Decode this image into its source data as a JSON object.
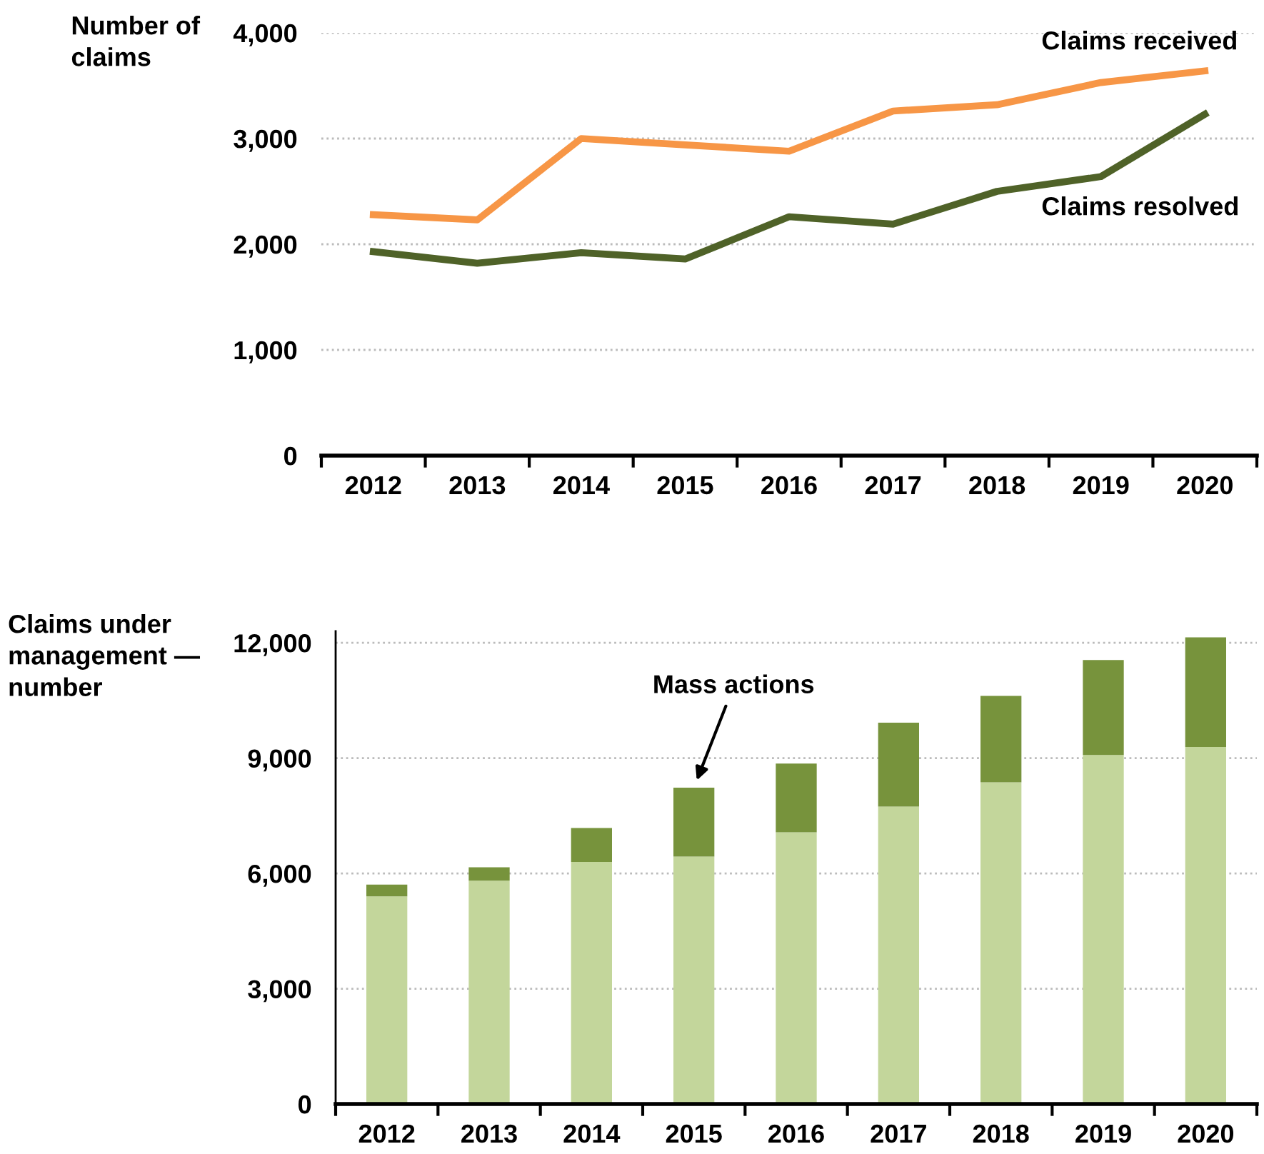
{
  "chart_data": [
    {
      "type": "line",
      "ylabel": "Number of claims",
      "categories": [
        "2012",
        "2013",
        "2014",
        "2015",
        "2016",
        "2017",
        "2018",
        "2019",
        "2020"
      ],
      "series": [
        {
          "name": "Claims received",
          "color": "#f79646",
          "values": [
            2280,
            2230,
            3000,
            2940,
            2880,
            3260,
            3320,
            3530,
            3640
          ]
        },
        {
          "name": "Claims resolved",
          "color": "#4f6228",
          "values": [
            1930,
            1820,
            1920,
            1860,
            2260,
            2190,
            2500,
            2640,
            3230
          ]
        }
      ],
      "ylim": [
        0,
        4000
      ],
      "yticks": [
        {
          "value": 0,
          "label": "0"
        },
        {
          "value": 1000,
          "label": "1,000"
        },
        {
          "value": 2000,
          "label": "2,000"
        },
        {
          "value": 3000,
          "label": "3,000"
        },
        {
          "value": 4000,
          "label": "4,000"
        }
      ],
      "grid": "y",
      "legend": false,
      "marker": "none",
      "line_style": "solid"
    },
    {
      "type": "bar",
      "stacked": true,
      "ylabel": "Claims under management — number",
      "categories": [
        "2012",
        "2013",
        "2014",
        "2015",
        "2016",
        "2017",
        "2018",
        "2019",
        "2020"
      ],
      "series": [
        {
          "color": "#c3d69b",
          "values": [
            5400,
            5810,
            6300,
            6440,
            7070,
            7740,
            8370,
            9080,
            9290
          ]
        },
        {
          "color": "#77933c",
          "values": [
            310,
            350,
            880,
            1790,
            1790,
            2180,
            2250,
            2470,
            2850
          ]
        }
      ],
      "ylim": [
        0,
        12300
      ],
      "yticks": [
        {
          "value": 0,
          "label": "0"
        },
        {
          "value": 3000,
          "label": "3,000"
        },
        {
          "value": 6000,
          "label": "6,000"
        },
        {
          "value": 9000,
          "label": "9,000"
        },
        {
          "value": 12000,
          "label": "12,000"
        }
      ],
      "annotations": [
        {
          "text": "Mass actions",
          "x": "2015",
          "y": 8230
        }
      ],
      "grid": "y",
      "legend": false
    }
  ]
}
